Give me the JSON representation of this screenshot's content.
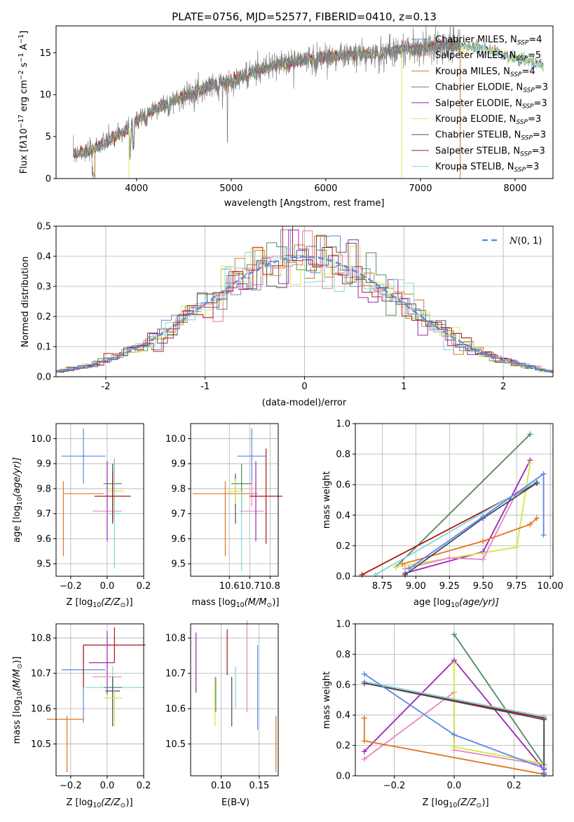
{
  "colors": {
    "Chabrier MILES": "#6c8ebf",
    "Salpeter MILES": "#e07b91",
    "Kroupa MILES": "#d2761e",
    "Chabrier ELODIE": "#5b8a5b",
    "Salpeter ELODIE": "#9a27b0",
    "Kroupa ELODIE": "#d8ec5a",
    "Chabrier STELIB": "#555555",
    "Salpeter STELIB": "#b01d1d",
    "Kroupa STELIB": "#86d6d6",
    "mb": "#5a87e8",
    "mo": "#e2741e",
    "mg": "#4f8a5b",
    "mp": "#9a27b0",
    "mpk": "#e884c4",
    "mlime": "#cfe83f",
    "mdark": "#444b55",
    "mred": "#ad1717",
    "mcyan": "#7fd8d8",
    "normal": "#5b8fd8"
  },
  "chart_data": [
    {
      "type": "line",
      "title": "PLATE=0756, MJD=52577, FIBERID=0410, z=0.13",
      "xlabel": "wavelength [Angstrom, rest frame]",
      "ylabel_parts": [
        "Flux [f",
        "λ",
        "10",
        "−17",
        " erg cm",
        "−2",
        " s",
        "−1",
        " A",
        "−1",
        "]"
      ],
      "xlim": [
        3150,
        8400
      ],
      "ylim": [
        0,
        18.2
      ],
      "xticks": [
        4000,
        5000,
        6000,
        7000,
        8000
      ],
      "yticks": [
        0,
        5,
        10,
        15
      ],
      "legend_placement": "upper-right",
      "legend": [
        {
          "name": "Chabrier MILES",
          "n": "4"
        },
        {
          "name": "Salpeter MILES",
          "n": "5"
        },
        {
          "name": "Kroupa MILES",
          "n": "4"
        },
        {
          "name": "Chabrier ELODIE",
          "n": "3"
        },
        {
          "name": "Salpeter ELODIE",
          "n": "3"
        },
        {
          "name": "Kroupa ELODIE",
          "n": "3"
        },
        {
          "name": "Chabrier STELIB",
          "n": "3"
        },
        {
          "name": "Salpeter STELIB",
          "n": "3"
        },
        {
          "name": "Kroupa STELIB",
          "n": "3"
        }
      ],
      "legend_n_label": "N",
      "legend_n_sub": "SSP",
      "continuum": [
        [
          3330,
          3.0
        ],
        [
          3500,
          3.2
        ],
        [
          3700,
          4.5
        ],
        [
          3900,
          5.8
        ],
        [
          4050,
          7.3
        ],
        [
          4200,
          8.4
        ],
        [
          4400,
          9.3
        ],
        [
          4600,
          10.3
        ],
        [
          4800,
          11.2
        ],
        [
          5000,
          11.6
        ],
        [
          5200,
          12.6
        ],
        [
          5400,
          13.3
        ],
        [
          5600,
          13.9
        ],
        [
          5800,
          14.2
        ],
        [
          6000,
          14.5
        ],
        [
          6200,
          14.7
        ],
        [
          6400,
          14.8
        ],
        [
          6600,
          15.0
        ],
        [
          6800,
          15.4
        ],
        [
          7000,
          15.5
        ],
        [
          7200,
          15.9
        ],
        [
          7400,
          15.8
        ],
        [
          7600,
          15.6
        ],
        [
          7800,
          15.0
        ],
        [
          8000,
          14.4
        ],
        [
          8300,
          13.5
        ]
      ],
      "data_range": [
        3330,
        7420
      ],
      "model_range": [
        3330,
        8300
      ]
    },
    {
      "type": "histogram",
      "xlabel": "(data-model)/error",
      "ylabel": "Normed distribution",
      "xlim": [
        -2.5,
        2.5
      ],
      "ylim": [
        0,
        0.5
      ],
      "xticks": [
        -2,
        -1,
        0,
        1,
        2
      ],
      "yticks": [
        0,
        0.1,
        0.2,
        0.3,
        0.4,
        0.5
      ],
      "bin_width": 0.1,
      "curve_label": "N(0, 1)",
      "legend_placement": "upper-right"
    },
    {
      "type": "scatter",
      "xlabel_parts": [
        "Z [log",
        "10",
        "(Z/Z",
        "⊙",
        ")]"
      ],
      "ylabel_parts": [
        "age  [log",
        "10",
        "(age/yr)]"
      ],
      "xlim": [
        -0.28,
        0.2
      ],
      "ylim": [
        9.45,
        10.06
      ],
      "xticks": [
        -0.2,
        0.0,
        0.2
      ],
      "xtick_labels": [
        "−0.2",
        "0.0",
        "0.2"
      ],
      "yticks": [
        9.5,
        9.6,
        9.7,
        9.8,
        9.9,
        10.0
      ],
      "points": [
        {
          "series": "mb",
          "x": -0.13,
          "xe": 0.12,
          "y": 9.93,
          "ye": 0.11
        },
        {
          "series": "mo",
          "x": -0.13,
          "xe": 0.11,
          "y": 9.78,
          "ye": 0.0
        },
        {
          "series": "mo",
          "x": -0.24,
          "xe": 0.0,
          "y": 9.68,
          "ye": 0.15
        },
        {
          "series": "mpk",
          "x": 0.0,
          "xe": 0.08,
          "y": 9.71,
          "ye": 0.0
        },
        {
          "series": "mp",
          "x": 0.0,
          "xe": 0.0,
          "y": 9.75,
          "ye": 0.16
        },
        {
          "series": "mg",
          "x": 0.03,
          "xe": 0.05,
          "y": 9.82,
          "ye": 0.0
        },
        {
          "series": "mg",
          "x": 0.04,
          "xe": 0.0,
          "y": 9.8,
          "ye": 0.12
        },
        {
          "series": "mdark",
          "x": 0.03,
          "xe": 0.0,
          "y": 9.78,
          "ye": 0.12
        },
        {
          "series": "mlime",
          "x": 0.04,
          "xe": 0.05,
          "y": 9.79,
          "ye": 0.08
        },
        {
          "series": "mcyan",
          "x": 0.04,
          "xe": 0.04,
          "y": 9.7,
          "ye": 0.22
        },
        {
          "series": "mred",
          "x": 0.03,
          "xe": 0.1,
          "y": 9.77,
          "ye": 0.0
        },
        {
          "series": "mred",
          "x": 0.03,
          "xe": 0.0,
          "y": 9.77,
          "ye": 0.1
        }
      ]
    },
    {
      "type": "scatter",
      "xlabel_parts": [
        "mass [log",
        "10",
        "(M/M",
        "⊙",
        ")]"
      ],
      "xlim": [
        10.41,
        10.84
      ],
      "ylim": [
        9.45,
        10.06
      ],
      "xticks": [
        10.6,
        10.7,
        10.8
      ],
      "yticks": [
        9.5,
        9.6,
        9.7,
        9.8,
        9.9,
        10.0
      ],
      "points": [
        {
          "series": "mb",
          "x": 10.71,
          "xe": 0.07,
          "y": 9.93,
          "ye": 0.11
        },
        {
          "series": "mo",
          "x": 10.58,
          "xe": 0.16,
          "y": 9.78,
          "ye": 0.0
        },
        {
          "series": "mo",
          "x": 10.58,
          "xe": 0.0,
          "y": 9.68,
          "ye": 0.15
        },
        {
          "series": "mpk",
          "x": 10.71,
          "xe": 0.06,
          "y": 9.71,
          "ye": 0.0
        },
        {
          "series": "mpk",
          "x": 10.71,
          "xe": 0.0,
          "y": 9.78,
          "ye": 0.05
        },
        {
          "series": "mp",
          "x": 10.73,
          "xe": 0.0,
          "y": 9.75,
          "ye": 0.16
        },
        {
          "series": "mg",
          "x": 10.66,
          "xe": 0.05,
          "y": 9.82,
          "ye": 0.0
        },
        {
          "series": "mg",
          "x": 10.66,
          "xe": 0.0,
          "y": 9.8,
          "ye": 0.1
        },
        {
          "series": "mdark",
          "x": 10.63,
          "xe": 0.0,
          "y": 9.76,
          "ye": 0.1
        },
        {
          "series": "mlime",
          "x": 10.63,
          "xe": 0.04,
          "y": 9.79,
          "ye": 0.05
        },
        {
          "series": "mcyan",
          "x": 10.66,
          "xe": 0.0,
          "y": 9.63,
          "ye": 0.16
        },
        {
          "series": "mred",
          "x": 10.78,
          "xe": 0.08,
          "y": 9.77,
          "ye": 0.0
        },
        {
          "series": "mred",
          "x": 10.78,
          "xe": 0.0,
          "y": 9.77,
          "ye": 0.19
        }
      ]
    },
    {
      "type": "line",
      "xlabel_parts": [
        "age  [log",
        "10",
        "(age/yr)]"
      ],
      "ylabel": "mass weight",
      "xlim": [
        8.55,
        10.02
      ],
      "ylim": [
        0,
        1.0
      ],
      "xticks": [
        8.75,
        9.0,
        9.25,
        9.5,
        9.75,
        10.0
      ],
      "xtick_labels": [
        "8.75",
        "9.00",
        "9.25",
        "9.50",
        "9.75",
        "10.00"
      ],
      "yticks": [
        0,
        0.2,
        0.4,
        0.6,
        0.8,
        1.0
      ],
      "series": [
        {
          "name": "mg",
          "pts": [
            [
              8.85,
              0.06
            ],
            [
              9.85,
              0.93
            ]
          ]
        },
        {
          "name": "mp",
          "pts": [
            [
              8.92,
              0.02
            ],
            [
              9.5,
              0.16
            ],
            [
              9.85,
              0.76
            ]
          ]
        },
        {
          "name": "mlime",
          "pts": [
            [
              8.85,
              0.06
            ],
            [
              9.75,
              0.19
            ],
            [
              9.85,
              0.74
            ]
          ]
        },
        {
          "name": "mpk",
          "pts": [
            [
              8.92,
              0.05
            ],
            [
              9.25,
              0.12
            ],
            [
              9.5,
              0.11
            ],
            [
              9.75,
              0.55
            ]
          ]
        },
        {
          "name": "mo",
          "pts": [
            [
              8.9,
              0.08
            ],
            [
              9.5,
              0.23
            ],
            [
              9.85,
              0.34
            ],
            [
              9.9,
              0.38
            ]
          ]
        },
        {
          "name": "mred",
          "pts": [
            [
              8.6,
              0.01
            ],
            [
              9.9,
              0.61
            ]
          ]
        },
        {
          "name": "mcyan",
          "pts": [
            [
              8.7,
              0.01
            ],
            [
              9.9,
              0.62
            ]
          ]
        },
        {
          "name": "mdark",
          "pts": [
            [
              8.92,
              0.01
            ],
            [
              9.5,
              0.38
            ],
            [
              9.9,
              0.61
            ]
          ]
        },
        {
          "name": "mb",
          "pts": [
            [
              8.95,
              0.05
            ],
            [
              9.5,
              0.39
            ],
            [
              9.95,
              0.67
            ],
            [
              9.95,
              0.27
            ]
          ]
        }
      ]
    },
    {
      "type": "scatter",
      "xlabel_parts": [
        "Z [log",
        "10",
        "(Z/Z",
        "⊙",
        ")]"
      ],
      "ylabel_parts": [
        "mass [log",
        "10",
        "(M/M",
        "⊙",
        ")]"
      ],
      "xlim": [
        -0.28,
        0.2
      ],
      "ylim": [
        10.41,
        10.84
      ],
      "xticks": [
        -0.2,
        0.0,
        0.2
      ],
      "xtick_labels": [
        "−0.2",
        "0.0",
        "0.2"
      ],
      "yticks": [
        10.5,
        10.6,
        10.7,
        10.8
      ],
      "points": [
        {
          "series": "mb",
          "x": -0.13,
          "xe": 0.12,
          "y": 10.71,
          "ye": 0.0
        },
        {
          "series": "mb",
          "x": -0.13,
          "xe": 0.0,
          "y": 10.67,
          "ye": 0.11
        },
        {
          "series": "mo",
          "x": -0.23,
          "xe": 0.1,
          "y": 10.57,
          "ye": 0.0
        },
        {
          "series": "mo",
          "x": -0.22,
          "xe": 0.0,
          "y": 10.5,
          "ye": 0.08
        },
        {
          "series": "mred",
          "x": -0.13,
          "xe": 0.0,
          "y": 10.72,
          "ye": 0.06
        },
        {
          "series": "mred",
          "x": 0.04,
          "xe": 0.17,
          "y": 10.78,
          "ye": 0.0
        },
        {
          "series": "mred",
          "x": 0.04,
          "xe": 0.0,
          "y": 10.78,
          "ye": 0.05
        },
        {
          "series": "mp",
          "x": -0.03,
          "xe": 0.07,
          "y": 10.73,
          "ye": 0.0
        },
        {
          "series": "mp",
          "x": 0.0,
          "xe": 0.0,
          "y": 10.73,
          "ye": 0.09
        },
        {
          "series": "mpk",
          "x": 0.0,
          "xe": 0.08,
          "y": 10.69,
          "ye": 0.0
        },
        {
          "series": "mcyan",
          "x": 0.04,
          "xe": 0.16,
          "y": 10.66,
          "ye": 0.0
        },
        {
          "series": "mcyan",
          "x": 0.03,
          "xe": 0.0,
          "y": 10.66,
          "ye": 0.06
        },
        {
          "series": "mg",
          "x": 0.03,
          "xe": 0.05,
          "y": 10.66,
          "ye": 0.0
        },
        {
          "series": "mdark",
          "x": 0.03,
          "xe": 0.04,
          "y": 10.65,
          "ye": 0.0
        },
        {
          "series": "mdark",
          "x": 0.03,
          "xe": 0.0,
          "y": 10.62,
          "ye": 0.07
        },
        {
          "series": "mlime",
          "x": 0.03,
          "xe": 0.05,
          "y": 10.63,
          "ye": 0.0
        },
        {
          "series": "mlime",
          "x": 0.04,
          "xe": 0.0,
          "y": 10.6,
          "ye": 0.05
        }
      ]
    },
    {
      "type": "scatter",
      "xlabel": "E(B-V)",
      "xlim": [
        0.06,
        0.175
      ],
      "ylim": [
        10.41,
        10.84
      ],
      "xticks": [
        0.1,
        0.15
      ],
      "xtick_labels": [
        "0.10",
        "0.15"
      ],
      "yticks": [
        10.5,
        10.6,
        10.7,
        10.8
      ],
      "points": [
        {
          "series": "mp",
          "x": 0.067,
          "xe": 0.0,
          "y": 10.73,
          "ye": 0.085
        },
        {
          "series": "mlime",
          "x": 0.092,
          "xe": 0.0,
          "y": 10.62,
          "ye": 0.07
        },
        {
          "series": "mg",
          "x": 0.093,
          "xe": 0.0,
          "y": 10.64,
          "ye": 0.05
        },
        {
          "series": "mred",
          "x": 0.108,
          "xe": 0.0,
          "y": 10.76,
          "ye": 0.065
        },
        {
          "series": "mdark",
          "x": 0.114,
          "xe": 0.0,
          "y": 10.62,
          "ye": 0.07
        },
        {
          "series": "mcyan",
          "x": 0.119,
          "xe": 0.0,
          "y": 10.66,
          "ye": 0.06
        },
        {
          "series": "mpk",
          "x": 0.134,
          "xe": 0.0,
          "y": 10.72,
          "ye": 0.13
        },
        {
          "series": "mb",
          "x": 0.148,
          "xe": 0.0,
          "y": 10.66,
          "ye": 0.12
        },
        {
          "series": "mo",
          "x": 0.172,
          "xe": 0.0,
          "y": 10.5,
          "ye": 0.08
        }
      ]
    },
    {
      "type": "line",
      "xlabel_parts": [
        "Z [log",
        "10",
        "(Z/Z",
        "⊙",
        ")]"
      ],
      "ylabel": "mass weight",
      "xlim": [
        -0.33,
        0.33
      ],
      "ylim": [
        0,
        1.0
      ],
      "xticks": [
        -0.2,
        0.0,
        0.2
      ],
      "xtick_labels": [
        "−0.2",
        "0.0",
        "0.2"
      ],
      "yticks": [
        0,
        0.2,
        0.4,
        0.6,
        0.8,
        1.0
      ],
      "series": [
        {
          "name": "mg",
          "pts": [
            [
              0,
              0.93
            ],
            [
              0.3,
              0.07
            ]
          ]
        },
        {
          "name": "mp",
          "pts": [
            [
              -0.3,
              0.16
            ],
            [
              0,
              0.76
            ],
            [
              0.3,
              0.04
            ]
          ]
        },
        {
          "name": "mpk",
          "pts": [
            [
              -0.3,
              0.11
            ],
            [
              0,
              0.55
            ],
            [
              0,
              0.17
            ],
            [
              0.3,
              0.07
            ]
          ]
        },
        {
          "name": "mlime",
          "pts": [
            [
              0,
              0.74
            ],
            [
              0,
              0.19
            ],
            [
              0.3,
              0.08
            ]
          ]
        },
        {
          "name": "mo",
          "pts": [
            [
              -0.3,
              0.38
            ],
            [
              -0.3,
              0.23
            ],
            [
              0.3,
              0.01
            ]
          ]
        },
        {
          "name": "mred",
          "pts": [
            [
              -0.3,
              0.61
            ],
            [
              0.3,
              0.38
            ],
            [
              0.3,
              0.01
            ]
          ]
        },
        {
          "name": "mcyan",
          "pts": [
            [
              -0.3,
              0.62
            ],
            [
              0.3,
              0.39
            ],
            [
              0.3,
              0.01
            ]
          ]
        },
        {
          "name": "mdark",
          "pts": [
            [
              -0.3,
              0.61
            ],
            [
              0.3,
              0.37
            ],
            [
              0.3,
              0.01
            ]
          ]
        },
        {
          "name": "mb",
          "pts": [
            [
              -0.3,
              0.67
            ],
            [
              0,
              0.27
            ],
            [
              0.3,
              0.05
            ],
            [
              0.3,
              0.02
            ]
          ]
        }
      ]
    }
  ]
}
